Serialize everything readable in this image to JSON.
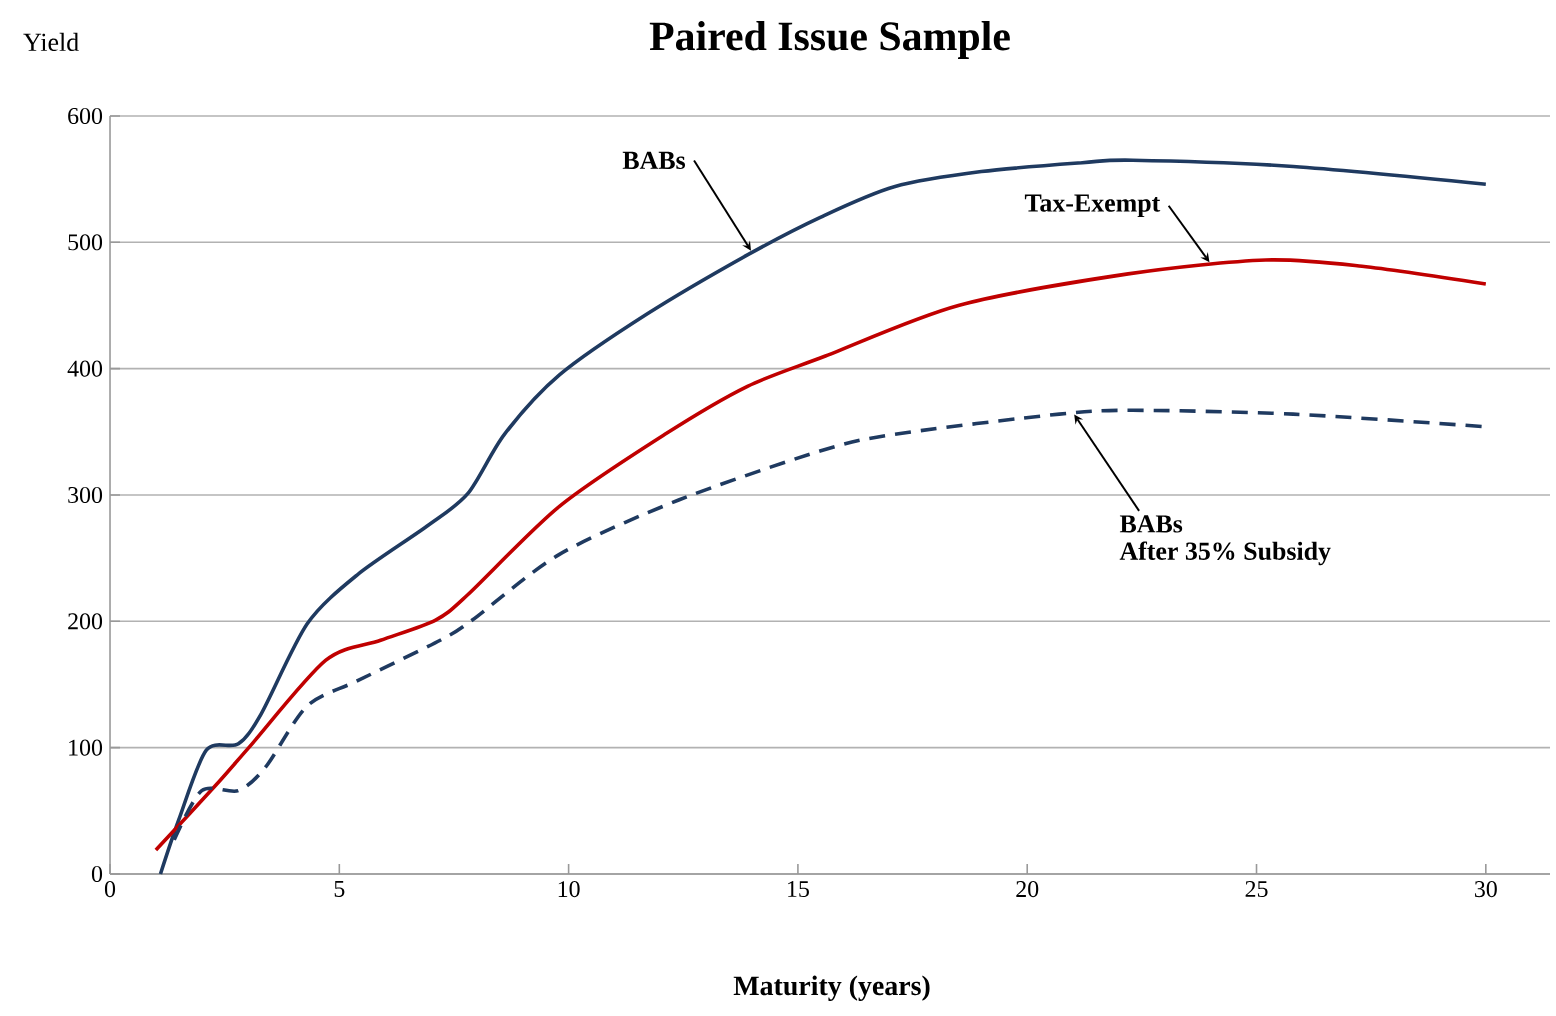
{
  "chart_data": {
    "type": "line",
    "title": "Paired Issue Sample",
    "xlabel": "Maturity (years)",
    "ylabel": "Yield",
    "xlim": [
      0,
      31.4
    ],
    "ylim": [
      0,
      600
    ],
    "xticks": [
      0,
      5,
      10,
      15,
      20,
      25,
      30
    ],
    "yticks": [
      0,
      100,
      200,
      300,
      400,
      500,
      600
    ],
    "grid": "y",
    "marker": "none",
    "series": [
      {
        "color": "#1f3a60",
        "line_style": "solid",
        "x": [
          1.1,
          1.5,
          2.1,
          2.8,
          3.3,
          4.3,
          5.4,
          6.9,
          7.8,
          8.6,
          9.8,
          11.7,
          13.9,
          15.5,
          17.1,
          19,
          21.2,
          22.3,
          25.8,
          30
        ],
        "values": [
          0,
          43,
          98,
          103,
          127,
          198,
          237,
          275,
          301,
          348,
          395,
          443,
          490,
          520,
          544,
          556,
          563,
          565,
          560,
          546
        ]
      },
      {
        "color": "#c00000",
        "line_style": "solid",
        "x": [
          1,
          2.3,
          3.05,
          4.7,
          5.9,
          7.1,
          7.8,
          9.8,
          12.1,
          13.9,
          15.6,
          18.5,
          22.2,
          25.2,
          27.3,
          30
        ],
        "values": [
          19,
          70,
          101,
          169,
          185,
          201,
          221,
          291,
          348,
          386,
          410,
          450,
          475,
          486,
          481,
          467
        ]
      },
      {
        "color": "#1f3a60",
        "line_style": "dashed",
        "x": [
          1.4,
          2,
          2.8,
          3.4,
          4.3,
          5.4,
          7.2,
          7.9,
          9.8,
          12.4,
          15.5,
          17.1,
          20.7,
          22.3,
          25.8,
          30
        ],
        "values": [
          27,
          66,
          66,
          85,
          133,
          153,
          185,
          201,
          253,
          296,
          335,
          348,
          364,
          367,
          364,
          354
        ]
      }
    ],
    "annotations": [
      {
        "text": "BABs",
        "x": 14,
        "y": 492
      },
      {
        "text": "Tax-Exempt",
        "x": 24,
        "y": 483
      },
      {
        "text": "BABs",
        "x": 21,
        "y": 365
      },
      "After 35% Subsidy"
    ]
  }
}
